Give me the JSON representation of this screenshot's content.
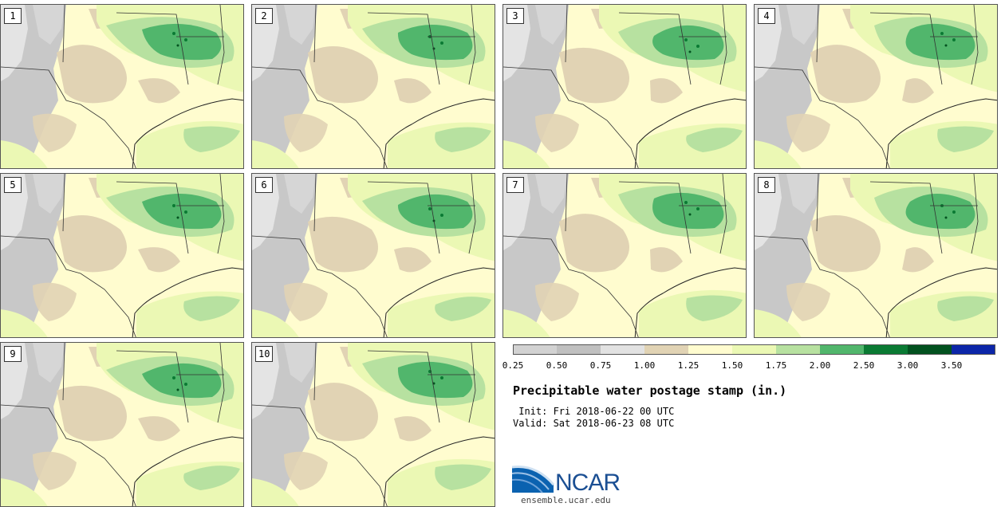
{
  "panels": [
    {
      "label": "1"
    },
    {
      "label": "2"
    },
    {
      "label": "3"
    },
    {
      "label": "4"
    },
    {
      "label": "5"
    },
    {
      "label": "6"
    },
    {
      "label": "7"
    },
    {
      "label": "8"
    },
    {
      "label": "9"
    },
    {
      "label": "10"
    }
  ],
  "colorbar": {
    "colors": [
      "#d2d2d2",
      "#c0c0c0",
      "#e2e2e2",
      "#e1d3b4",
      "#fffccf",
      "#ebf8b4",
      "#b7e1a0",
      "#51b66c",
      "#0a7a33",
      "#02511f",
      "#0c26a8"
    ],
    "tick_labels": [
      "0.25",
      "0.50",
      "0.75",
      "1.00",
      "1.25",
      "1.50",
      "1.75",
      "2.00",
      "2.50",
      "3.00",
      "3.50"
    ]
  },
  "title": "Precipitable water postage stamp (in.)",
  "init_text": " Init: Fri 2018-06-22 00 UTC",
  "valid_text": "Valid: Sat 2018-06-23 08 UTC",
  "logo": {
    "name": "NCAR",
    "url": "ensemble.ucar.edu"
  }
}
